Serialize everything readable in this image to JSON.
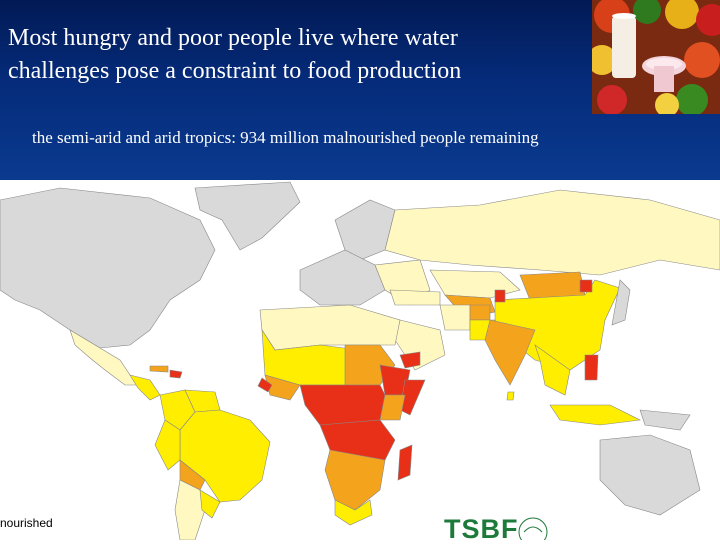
{
  "slide": {
    "title_line1": "Most hungry and poor people live where water",
    "title_line2": "challenges pose a constraint to food production",
    "subtitle": "the semi-arid and arid tropics: 934 million malnourished people remaining"
  },
  "legend": {
    "fragment": "nourished"
  },
  "logo": {
    "text": "TSBF"
  },
  "colors": {
    "header_bg": "#052b7a",
    "no_data": "#d9d9d9",
    "very_low": "#fff8c0",
    "low": "#ffee00",
    "moderate": "#f4a31c",
    "high": "#e83018",
    "ocean": "#ffffff"
  }
}
